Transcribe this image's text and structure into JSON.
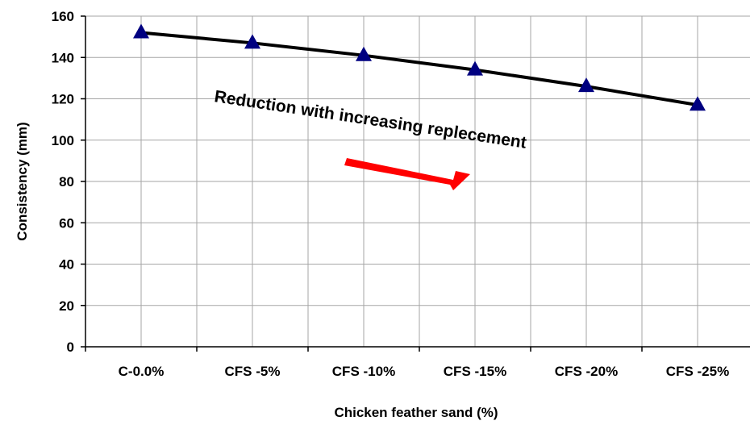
{
  "chart_data": {
    "type": "line",
    "categories": [
      "C-0.0%",
      "CFS -5%",
      "CFS -10%",
      "CFS -15%",
      "CFS -20%",
      "CFS -25%"
    ],
    "series": [
      {
        "values": [
          152,
          147,
          141,
          134,
          126,
          117
        ]
      }
    ],
    "xlabel": "Chicken feather sand (%)",
    "ylabel": "Consistency (mm)",
    "ylim": [
      0,
      160
    ],
    "yticks": [
      0,
      20,
      40,
      60,
      80,
      100,
      120,
      140,
      160
    ],
    "grid": true,
    "annotation": "Reduction with increasing replecement",
    "colors": {
      "line": "#000000",
      "marker": "#000080",
      "arrow": "#ff0000",
      "grid": "#a6a6a6"
    }
  }
}
